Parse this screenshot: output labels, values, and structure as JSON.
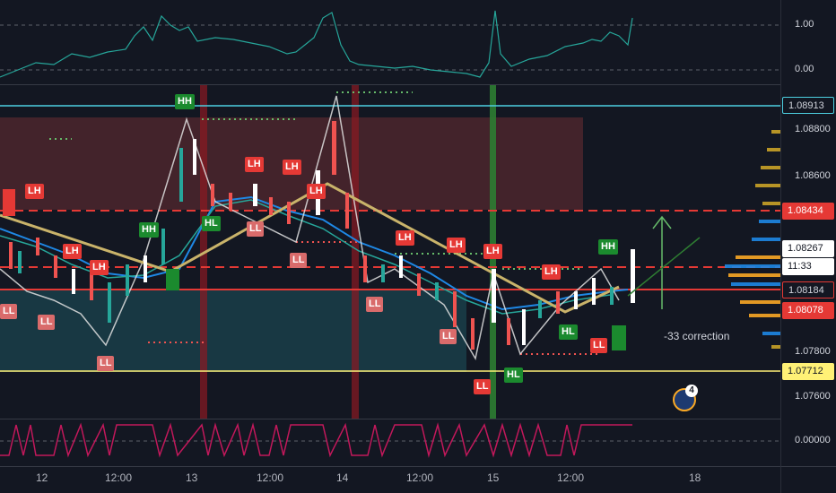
{
  "indicator_top": {
    "ticks": [
      "1.00",
      "0.00"
    ]
  },
  "price_axis": {
    "ticks": [
      "1.08800",
      "1.08600",
      "1.07800",
      "1.07600"
    ],
    "tags": [
      {
        "label": "1.08913",
        "bg": "#131722",
        "fg": "#d1d4dc",
        "border": "#4dd0e1"
      },
      {
        "label": "1.08434",
        "bg": "#e53935",
        "fg": "#ffffff"
      },
      {
        "label": "1.08267",
        "bg": "#ffffff",
        "fg": "#131722"
      },
      {
        "label": "11:33",
        "bg": "#ffffff",
        "fg": "#131722"
      },
      {
        "label": "1.08184",
        "bg": "#131722",
        "fg": "#d1d4dc",
        "border": "#e53935"
      },
      {
        "label": "1.08078",
        "bg": "#e53935",
        "fg": "#ffffff"
      },
      {
        "label": "1.07712",
        "bg": "#fff176",
        "fg": "#131722"
      }
    ]
  },
  "indicator_bottom": {
    "ticks": [
      "0.00000"
    ]
  },
  "time_axis": [
    "12",
    "12:00",
    "13",
    "12:00",
    "14",
    "12:00",
    "15",
    "12:00",
    "18"
  ],
  "structure_labels": {
    "HH": "HH",
    "LH": "LH",
    "HL": "HL",
    "LL": "LL"
  },
  "annotation": {
    "correction": "-33 correction"
  },
  "event_badge": {
    "count": "4"
  },
  "colors": {
    "bull": "#26a69a",
    "bear": "#ef5350",
    "accent": "#4dd0e1"
  }
}
